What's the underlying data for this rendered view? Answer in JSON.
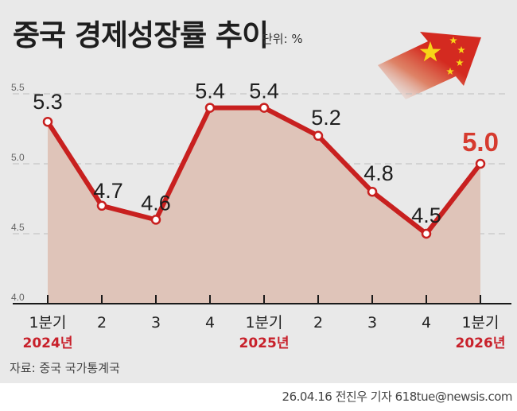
{
  "header": {
    "title": "중국 경제성장률 추이",
    "unit": "단위: %"
  },
  "decoration": {
    "icon": "china-flag-arrow-icon",
    "flag_red": "#d42a20",
    "star_yellow": "#f7d418"
  },
  "colors": {
    "background": "#e9e9e9",
    "line": "#c8201f",
    "area_fill": "#dfc4b9",
    "highlight_value": "#d63b2f",
    "year_label": "#c8202a"
  },
  "chart_data": {
    "type": "line",
    "title": "중국 경제성장률 추이",
    "unit": "%",
    "xlabel": "",
    "ylabel": "",
    "ylim": [
      4.0,
      5.5
    ],
    "yticks": [
      "4.0",
      "4.5",
      "5.0",
      "5.5"
    ],
    "grid": "horizontal dashed",
    "area_fill": true,
    "categories": [
      "1분기",
      "2",
      "3",
      "4",
      "1분기",
      "2",
      "3",
      "4",
      "1분기"
    ],
    "year_labels": [
      {
        "index": 0,
        "label": "2024년"
      },
      {
        "index": 4,
        "label": "2025년"
      },
      {
        "index": 8,
        "label": "2026년"
      }
    ],
    "series": [
      {
        "name": "경제성장률",
        "values": [
          5.3,
          4.7,
          4.6,
          5.4,
          5.4,
          5.2,
          4.8,
          4.5,
          5.0
        ],
        "labels": [
          "5.3",
          "4.7",
          "4.6",
          "5.4",
          "5.4",
          "5.2",
          "4.8",
          "4.5",
          "5.0"
        ],
        "highlight_index": 8
      }
    ]
  },
  "footer": {
    "source": "자료: 중국 국가통계국",
    "credit": "26.04.16 전진우 기자 618tue@newsis.com"
  }
}
